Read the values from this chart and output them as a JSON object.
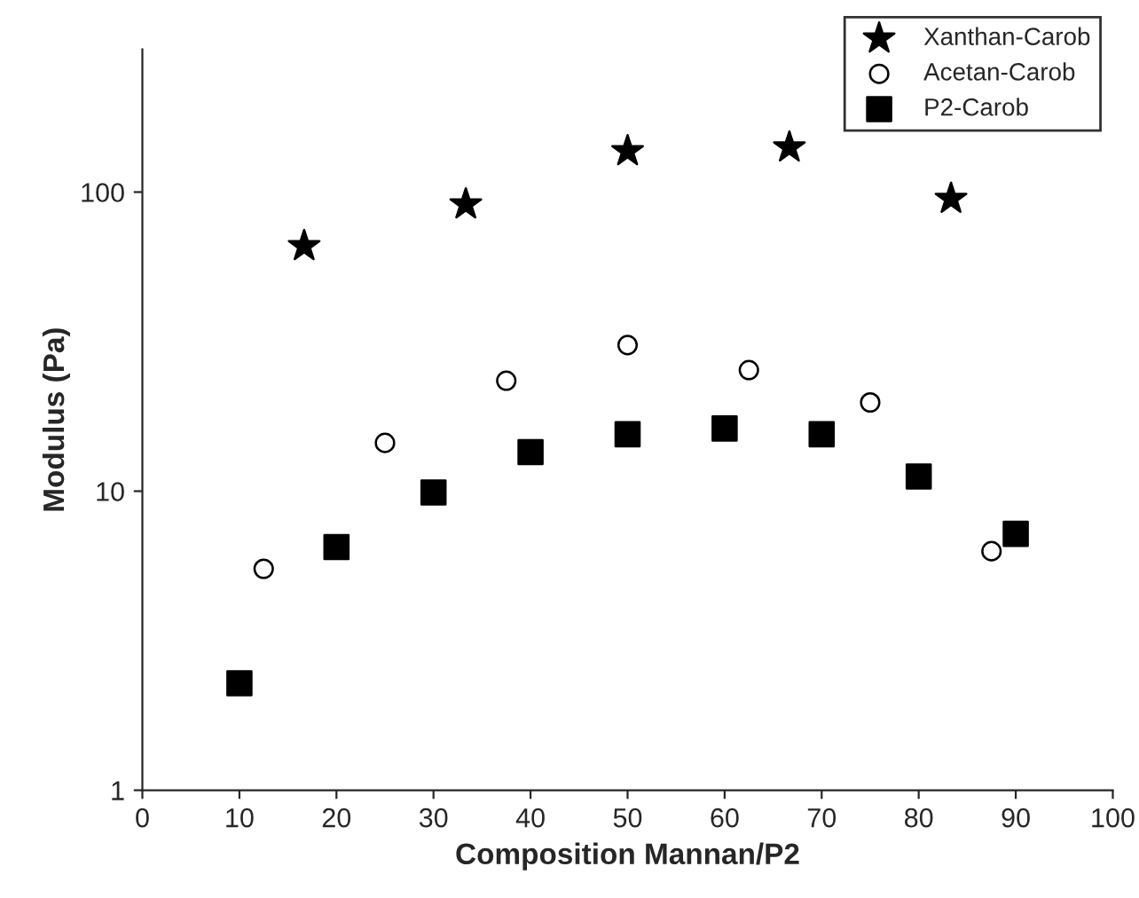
{
  "chart_data": {
    "type": "scatter",
    "xlabel": "Composition Mannan/P2",
    "ylabel": "Modulus (Pa)",
    "log": "y",
    "xlim": [
      0,
      100
    ],
    "xticks": [
      0,
      10,
      20,
      30,
      40,
      50,
      60,
      70,
      80,
      90,
      100
    ],
    "ylim": [
      1,
      300
    ],
    "yticks": [
      1,
      10,
      100
    ],
    "legend": "top right",
    "grid": false,
    "series": [
      {
        "name": "Xanthan-Carob",
        "color": "#000000",
        "marker": "star",
        "x": [
          16.67,
          33.33,
          50,
          66.67,
          83.33
        ],
        "values": [
          66,
          91,
          137,
          141,
          95
        ]
      },
      {
        "name": "Acetan-Carob",
        "color": "#000000",
        "marker": "circle",
        "x": [
          12.5,
          25,
          37.5,
          50,
          62.5,
          75,
          87.5
        ],
        "values": [
          5.5,
          14.5,
          23.4,
          30.8,
          25.4,
          19.8,
          6.3
        ]
      },
      {
        "name": "P2-Carob",
        "color": "#000000",
        "marker": "square",
        "x": [
          10,
          20,
          30,
          40,
          50,
          60,
          70,
          80,
          90
        ],
        "values": [
          2.28,
          6.5,
          9.9,
          13.5,
          15.5,
          16.2,
          15.5,
          11.2,
          7.2
        ]
      }
    ]
  }
}
